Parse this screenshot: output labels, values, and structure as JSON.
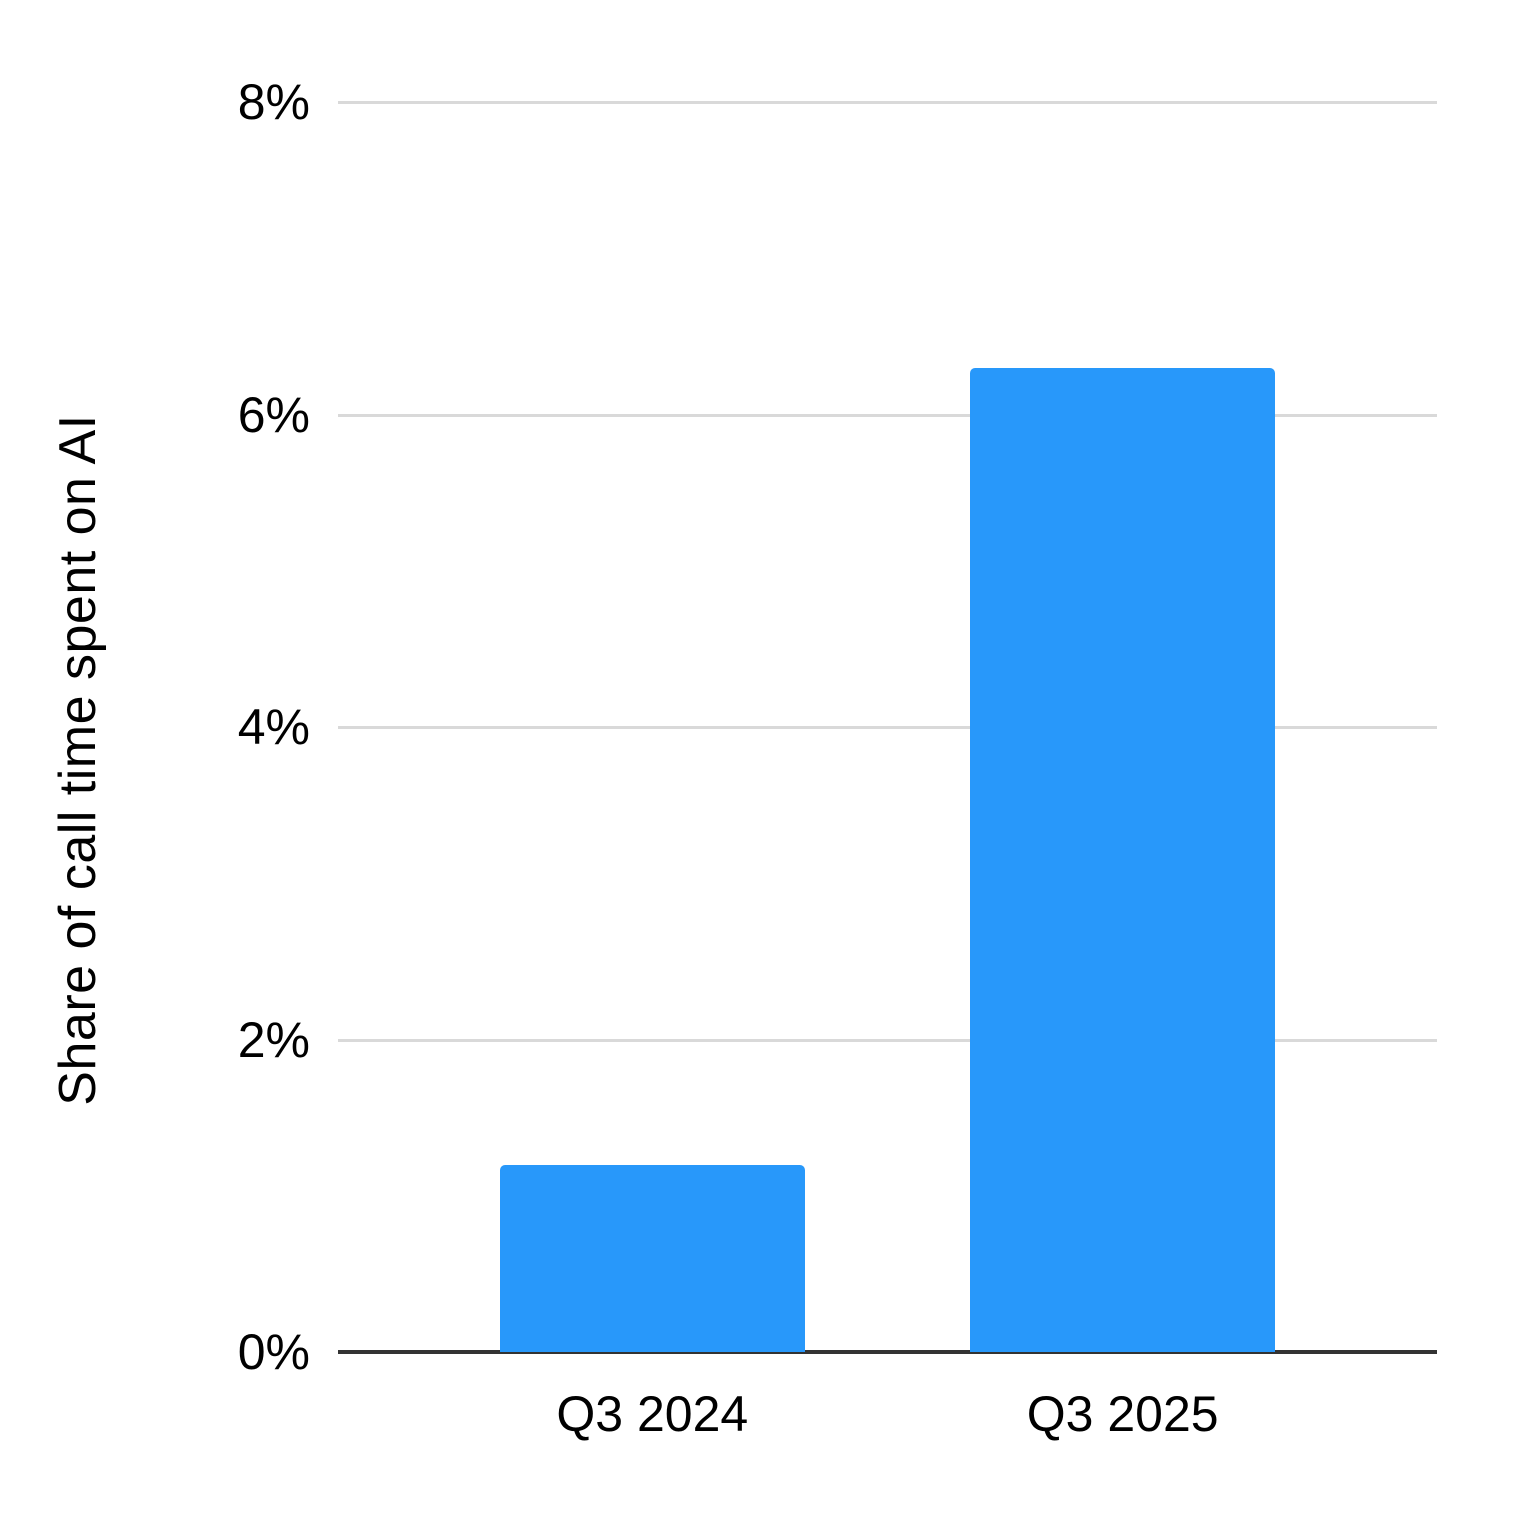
{
  "chart_data": {
    "type": "bar",
    "categories": [
      "Q3 2024",
      "Q3 2025"
    ],
    "values": [
      1.2,
      6.3
    ],
    "title": "",
    "xlabel": "",
    "ylabel": "Share of call time spent on AI",
    "ylim": [
      0,
      8
    ],
    "yticks": [
      0,
      2,
      4,
      6,
      8
    ],
    "ytick_labels": [
      "0%",
      "2%",
      "4%",
      "6%",
      "8%"
    ],
    "grid": true,
    "legend": false,
    "colors": {
      "bar": "#2898fa",
      "gridline": "#d9d9d9",
      "axis_line": "#333333",
      "text": "#000000",
      "background": "#ffffff"
    }
  }
}
